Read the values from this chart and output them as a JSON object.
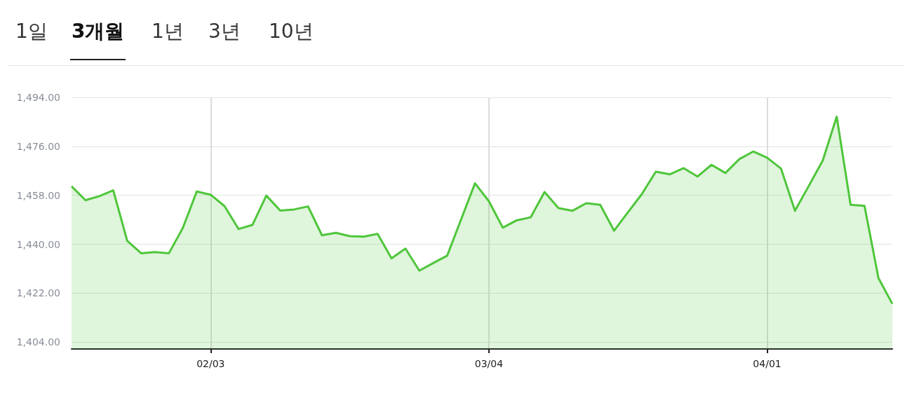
{
  "chart_data": {
    "type": "area",
    "annotations": [
      "1일",
      "3개월",
      "1년",
      "3년",
      "10년"
    ],
    "categories": [
      null,
      null,
      null,
      null,
      null,
      null,
      null,
      null,
      null,
      null,
      "02/03",
      null,
      null,
      null,
      null,
      null,
      null,
      null,
      null,
      null,
      null,
      null,
      null,
      null,
      null,
      null,
      null,
      null,
      null,
      null,
      "03/04",
      null,
      null,
      null,
      null,
      null,
      null,
      null,
      null,
      null,
      null,
      null,
      null,
      null,
      null,
      null,
      null,
      null,
      null,
      null,
      "04/01",
      null,
      null,
      null,
      null,
      null,
      null,
      null,
      null,
      null
    ],
    "series": [
      {
        "color": "#4fc63b",
        "values": [
          1461.3,
          1456.2,
          1457.7,
          1459.8,
          1441.3,
          1436.7,
          1437.1,
          1436.7,
          1446.0,
          1459.4,
          1458.2,
          1454.0,
          1445.6,
          1447.1,
          1457.9,
          1452.4,
          1452.8,
          1453.9,
          1443.3,
          1444.2,
          1443.0,
          1442.8,
          1443.8,
          1434.8,
          1438.4,
          1430.3,
          1433.1,
          1435.8,
          1449.1,
          1462.4,
          1455.8,
          1446.1,
          1448.8,
          1449.9,
          1459.2,
          1453.3,
          1452.3,
          1455.1,
          1454.5,
          1445.0,
          1451.8,
          1458.5,
          1466.7,
          1465.7,
          1468.0,
          1464.9,
          1469.2,
          1466.2,
          1471.3,
          1474.1,
          1471.8,
          1467.8,
          1452.3,
          1461.5,
          1470.8,
          1486.9,
          1454.5,
          1454.1,
          1427.6,
          1418.1
        ]
      }
    ],
    "ylim": [
      1401.5,
      1494
    ],
    "yticks": [
      {
        "value": 1404,
        "label": "1,404.00"
      },
      {
        "value": 1422,
        "label": "1,422.00"
      },
      {
        "value": 1440,
        "label": "1,440.00"
      },
      {
        "value": 1458,
        "label": "1,458.00"
      },
      {
        "value": 1476,
        "label": "1,476.00"
      },
      {
        "value": 1494,
        "label": "1,494.00"
      }
    ],
    "grid": true,
    "marker": "none",
    "line_style": "solid"
  }
}
